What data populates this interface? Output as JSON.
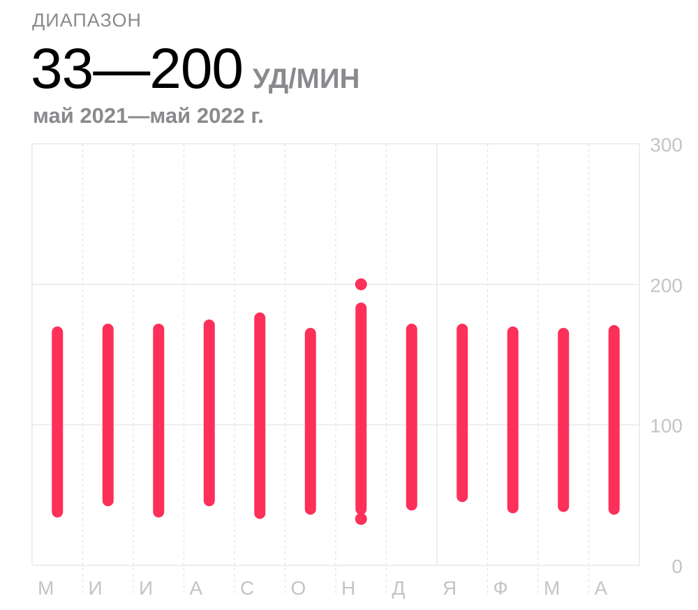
{
  "header": {
    "label": "ДИАПАЗОН",
    "range": "33—200",
    "unit": "УД/МИН",
    "period": "май 2021—май 2022 г."
  },
  "colors": {
    "accent": "#fc3059",
    "grid": "#e3e3e6",
    "text_secondary": "#8a8a8e",
    "tick_text": "#c4c4c7"
  },
  "chart_data": {
    "type": "range_bar",
    "categories": [
      "М",
      "И",
      "И",
      "А",
      "С",
      "О",
      "Н",
      "Д",
      "Я",
      "Ф",
      "М",
      "А"
    ],
    "series": [
      {
        "low": [
          38,
          46,
          38,
          46,
          37,
          40,
          40,
          43,
          49,
          41,
          42,
          40
        ],
        "high": [
          166,
          168,
          168,
          171,
          176,
          165,
          183,
          168,
          168,
          166,
          165,
          167
        ]
      }
    ],
    "outliers": [
      {
        "category_index": 6,
        "value": 200
      },
      {
        "category_index": 6,
        "value": 33
      }
    ],
    "ylim": [
      0,
      300
    ],
    "yticks": [
      0,
      100,
      200,
      300
    ],
    "grid": true
  }
}
